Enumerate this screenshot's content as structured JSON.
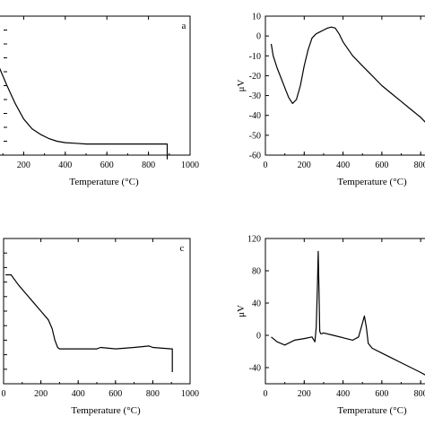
{
  "chart_data": [
    {
      "type": "line",
      "panel_label": "a",
      "xlabel": "Temperature (°C)",
      "ylabel": "",
      "xlim": [
        0,
        1000
      ],
      "ylim": [
        0,
        100
      ],
      "xticks": [
        "200",
        "400",
        "600",
        "800",
        "1000"
      ],
      "yticks": [],
      "grid": false,
      "series": [
        {
          "x": [
            0,
            20,
            50,
            80,
            120,
            160,
            200,
            240,
            280,
            320,
            360,
            400,
            450,
            500,
            600,
            700,
            800,
            890,
            890
          ],
          "y": [
            82,
            82,
            75,
            64,
            50,
            37,
            26,
            19,
            15,
            12,
            10,
            9,
            8.5,
            8,
            8,
            8,
            8,
            8,
            -3
          ]
        }
      ]
    },
    {
      "type": "line",
      "panel_label": "",
      "xlabel": "Temperature (°C)",
      "ylabel": "μV",
      "xlim": [
        0,
        850
      ],
      "ylim": [
        -60,
        10
      ],
      "xticks": [
        "0",
        "200",
        "400",
        "600",
        "800"
      ],
      "yticks": [
        "10",
        "0",
        "-10",
        "-20",
        "-30",
        "-40",
        "-50",
        "-60"
      ],
      "grid": false,
      "series": [
        {
          "x": [
            30,
            40,
            60,
            80,
            100,
            120,
            140,
            160,
            180,
            200,
            220,
            240,
            260,
            280,
            300,
            320,
            340,
            360,
            380,
            400,
            450,
            500,
            550,
            600,
            650,
            700,
            750,
            800,
            830
          ],
          "y": [
            -4,
            -10,
            -16,
            -21,
            -26,
            -31,
            -34,
            -32,
            -25,
            -15,
            -7,
            -1,
            1,
            2,
            3,
            4,
            4.5,
            4,
            1,
            -3,
            -10,
            -15,
            -20,
            -25,
            -29,
            -33,
            -37,
            -41,
            -44
          ]
        }
      ]
    },
    {
      "type": "line",
      "panel_label": "c",
      "xlabel": "Temperature (°C)",
      "ylabel": "",
      "xlim": [
        0,
        1000
      ],
      "ylim": [
        0,
        100
      ],
      "xticks": [
        "0",
        "200",
        "400",
        "600",
        "800",
        "1000"
      ],
      "yticks": [],
      "grid": false,
      "series": [
        {
          "x": [
            10,
            40,
            80,
            120,
            160,
            200,
            240,
            260,
            275,
            290,
            300,
            400,
            500,
            520,
            600,
            700,
            780,
            800,
            900,
            905,
            905
          ],
          "y": [
            75,
            75,
            68,
            62,
            56,
            50,
            44,
            38,
            30,
            25,
            24,
            24,
            24,
            25,
            24,
            25,
            26,
            25,
            24,
            24,
            8
          ]
        }
      ]
    },
    {
      "type": "line",
      "panel_label": "",
      "xlabel": "Temperature (°C)",
      "ylabel": "μV",
      "xlim": [
        0,
        850
      ],
      "ylim": [
        -60,
        120
      ],
      "xticks": [
        "0",
        "200",
        "400",
        "600",
        "800"
      ],
      "yticks": [
        "120",
        "80",
        "40",
        "0",
        "-40"
      ],
      "grid": false,
      "series": [
        {
          "x": [
            30,
            60,
            100,
            150,
            200,
            240,
            255,
            262,
            268,
            272,
            276,
            280,
            285,
            290,
            300,
            350,
            400,
            450,
            480,
            500,
            510,
            520,
            530,
            550,
            600,
            650,
            700,
            750,
            800,
            830
          ],
          "y": [
            -2,
            -8,
            -12,
            -6,
            -4,
            -2,
            -8,
            10,
            60,
            104,
            60,
            5,
            2,
            2,
            3,
            0,
            -3,
            -6,
            -2,
            15,
            24,
            10,
            -10,
            -16,
            -22,
            -28,
            -34,
            -40,
            -46,
            -50
          ]
        }
      ]
    }
  ]
}
